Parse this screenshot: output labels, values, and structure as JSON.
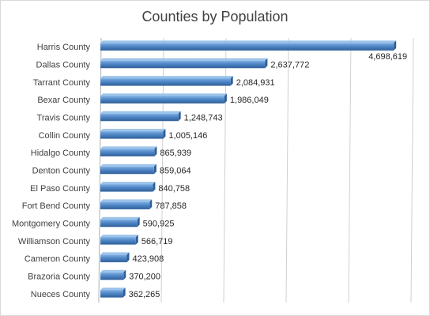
{
  "chart_data": {
    "type": "bar",
    "orientation": "horizontal",
    "title": "Counties by Population",
    "xlabel": "",
    "ylabel": "",
    "categories": [
      "Harris County",
      "Dallas County",
      "Tarrant County",
      "Bexar County",
      "Travis County",
      "Collin County",
      "Hidalgo County",
      "Denton County",
      "El Paso County",
      "Fort Bend County",
      "Montgomery County",
      "Williamson County",
      "Cameron County",
      "Brazoria County",
      "Nueces County"
    ],
    "values": [
      4698619,
      2637772,
      2084931,
      1986049,
      1248743,
      1005146,
      865939,
      859064,
      840758,
      787858,
      590925,
      566719,
      423908,
      370200,
      362265
    ],
    "data_labels": [
      "4,698,619",
      "2,637,772",
      "2,084,931",
      "1,986,049",
      "1,248,743",
      "1,005,146",
      "865,939",
      "859,064",
      "840,758",
      "787,858",
      "590,925",
      "566,719",
      "423,908",
      "370,200",
      "362,265"
    ],
    "xlim": [
      0,
      5000000
    ],
    "grid": true,
    "legend": "none",
    "bar_color": "#4f86c6"
  }
}
